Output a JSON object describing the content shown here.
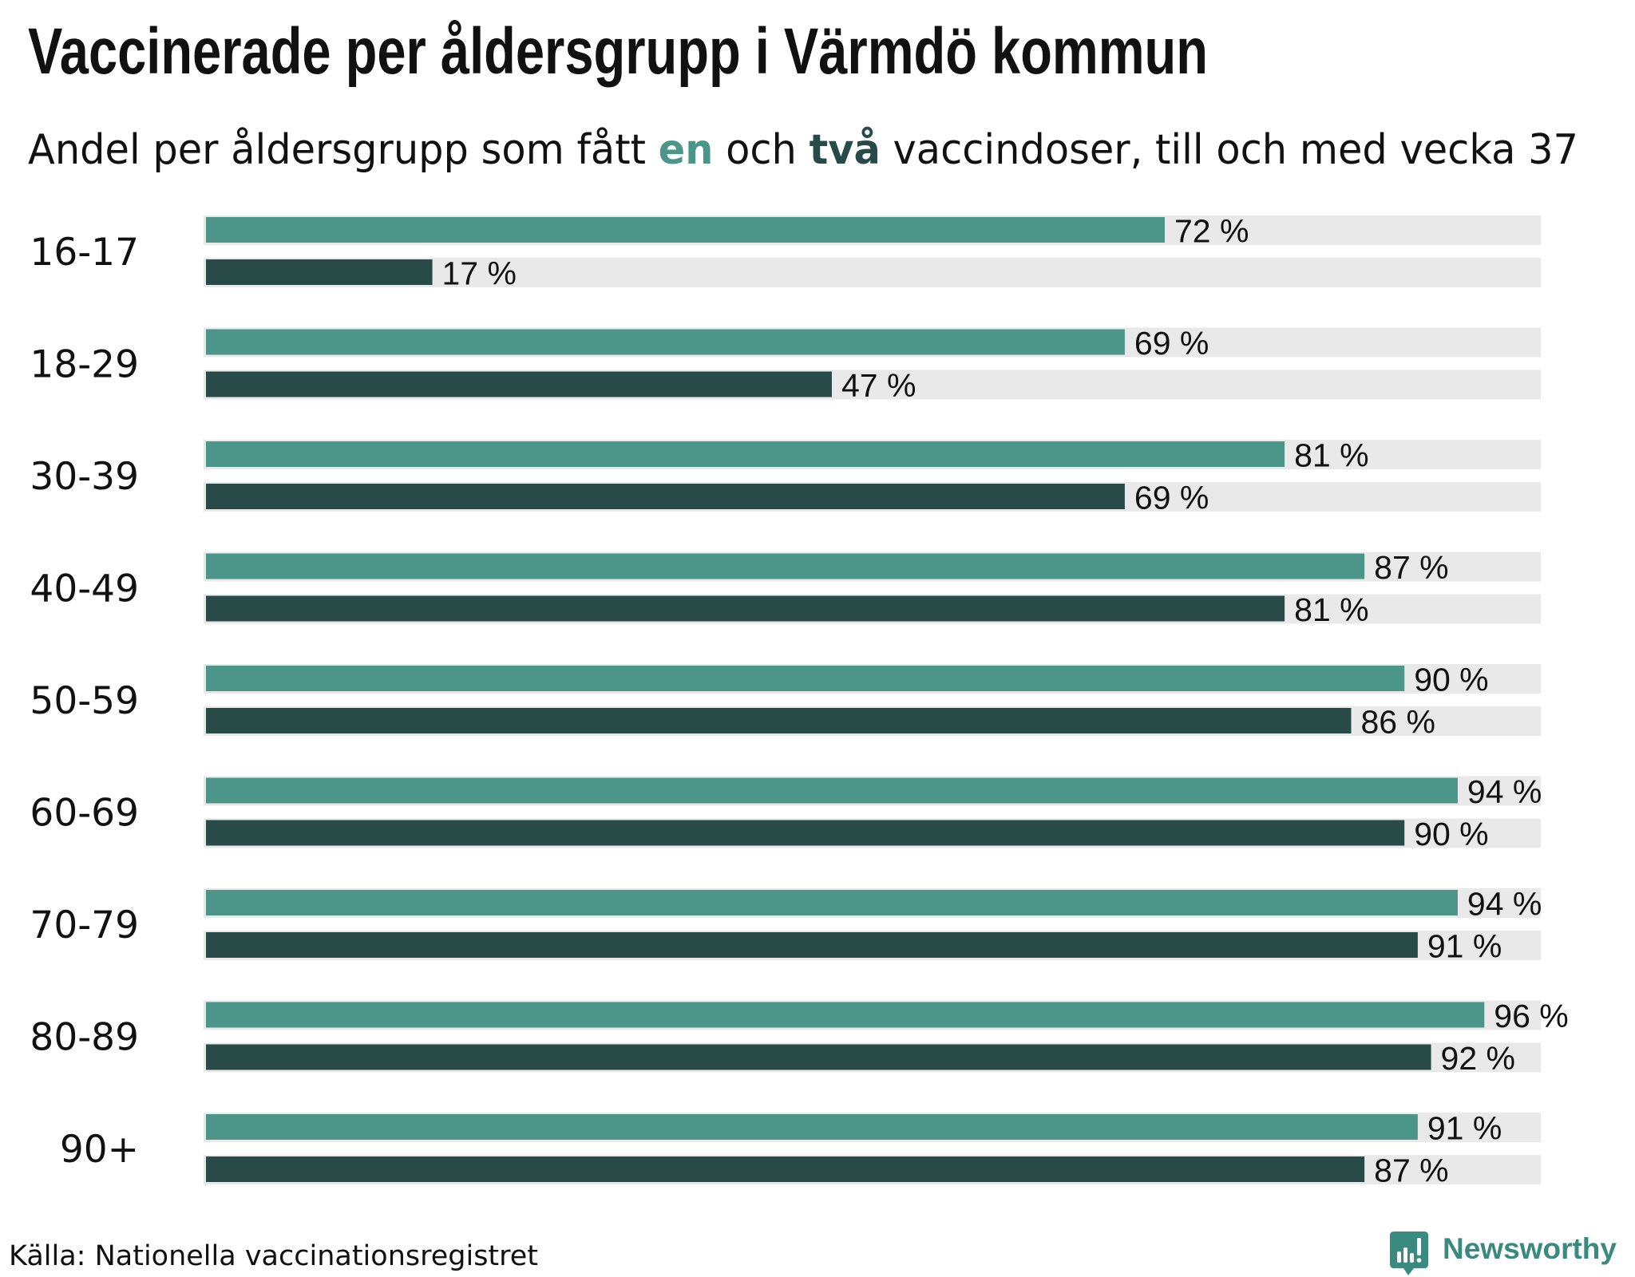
{
  "colors": {
    "first_dose": "#4c9689",
    "second_dose": "#284b48",
    "track": "#e9e9e9",
    "brand": "#3a8a7f"
  },
  "chart_data": {
    "type": "bar",
    "orientation": "horizontal",
    "title": "Vaccinerade per åldersgrupp i Värmdö kommun",
    "subtitle": {
      "before": "Andel per åldersgrupp som fått ",
      "highlight_one": "en",
      "middle": " och ",
      "highlight_two": "två",
      "after": " vaccindoser, till och med vecka 37"
    },
    "categories": [
      "16-17",
      "18-29",
      "30-39",
      "40-49",
      "50-59",
      "60-69",
      "70-79",
      "80-89",
      "90+"
    ],
    "series": [
      {
        "name": "en",
        "values": [
          72,
          69,
          81,
          87,
          90,
          94,
          94,
          96,
          91
        ]
      },
      {
        "name": "två",
        "values": [
          17,
          47,
          69,
          81,
          86,
          90,
          91,
          92,
          87
        ]
      }
    ],
    "value_suffix": " %",
    "xlim": [
      0,
      100
    ],
    "grid": false,
    "legend": "inline-in-subtitle"
  },
  "footer": {
    "source": "Källa: Nationella vaccinationsregistret",
    "brand": "Newsworthy",
    "brand_icon": "newsworthy-logo-icon"
  }
}
